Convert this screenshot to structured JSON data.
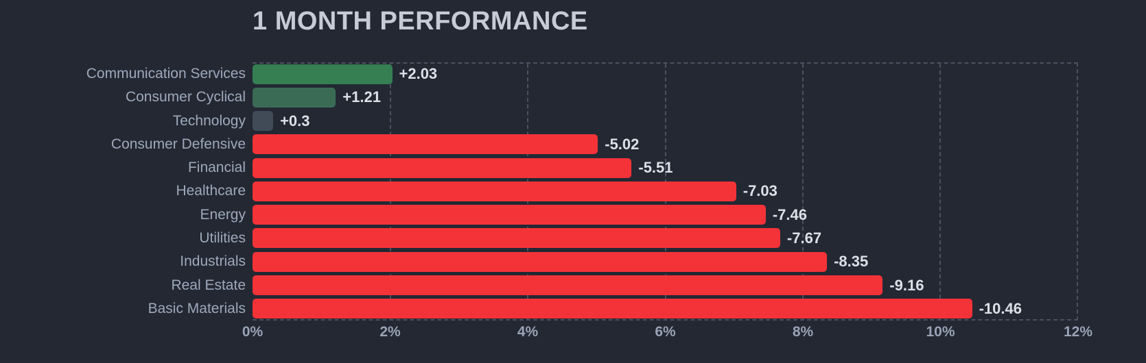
{
  "title": "1 MONTH PERFORMANCE",
  "colors": {
    "background": "#232833",
    "grid": "#4a5261",
    "title_text": "#c7cbd5",
    "label_text": "#9fa9bb",
    "value_text": "#dde0e7",
    "axis_text": "#99a3b4",
    "negative_bar": "#f43339",
    "positive_strong_bar": "#357f52",
    "positive_muted_bar": "#3a6c55",
    "neutral_bar": "#414b57"
  },
  "chart_data": {
    "type": "bar",
    "orientation": "horizontal",
    "title": "1 MONTH PERFORMANCE",
    "xlabel": "",
    "ylabel": "",
    "xlim": [
      0,
      12
    ],
    "x_ticks": [
      "0%",
      "2%",
      "4%",
      "6%",
      "8%",
      "10%",
      "12%"
    ],
    "grid": "dashed-vertical",
    "bar_length_represents": "absolute value of percent change",
    "categories": [
      "Communication Services",
      "Consumer Cyclical",
      "Technology",
      "Consumer Defensive",
      "Financial",
      "Healthcare",
      "Energy",
      "Utilities",
      "Industrials",
      "Real Estate",
      "Basic Materials"
    ],
    "values": [
      2.03,
      1.21,
      0.3,
      -5.02,
      -5.51,
      -7.03,
      -7.46,
      -7.67,
      -8.35,
      -9.16,
      -10.46
    ],
    "items": [
      {
        "label": "Communication Services",
        "value": 2.03,
        "display": "+2.03",
        "bar_color": "#357f52"
      },
      {
        "label": "Consumer Cyclical",
        "value": 1.21,
        "display": "+1.21",
        "bar_color": "#3a6c55"
      },
      {
        "label": "Technology",
        "value": 0.3,
        "display": "+0.3",
        "bar_color": "#414b57"
      },
      {
        "label": "Consumer Defensive",
        "value": -5.02,
        "display": "-5.02",
        "bar_color": "#f43339"
      },
      {
        "label": "Financial",
        "value": -5.51,
        "display": "-5.51",
        "bar_color": "#f43339"
      },
      {
        "label": "Healthcare",
        "value": -7.03,
        "display": "-7.03",
        "bar_color": "#f43339"
      },
      {
        "label": "Energy",
        "value": -7.46,
        "display": "-7.46",
        "bar_color": "#f43339"
      },
      {
        "label": "Utilities",
        "value": -7.67,
        "display": "-7.67",
        "bar_color": "#f43339"
      },
      {
        "label": "Industrials",
        "value": -8.35,
        "display": "-8.35",
        "bar_color": "#f43339"
      },
      {
        "label": "Real Estate",
        "value": -9.16,
        "display": "-9.16",
        "bar_color": "#f43339"
      },
      {
        "label": "Basic Materials",
        "value": -10.46,
        "display": "-10.46",
        "bar_color": "#f43339"
      }
    ]
  }
}
